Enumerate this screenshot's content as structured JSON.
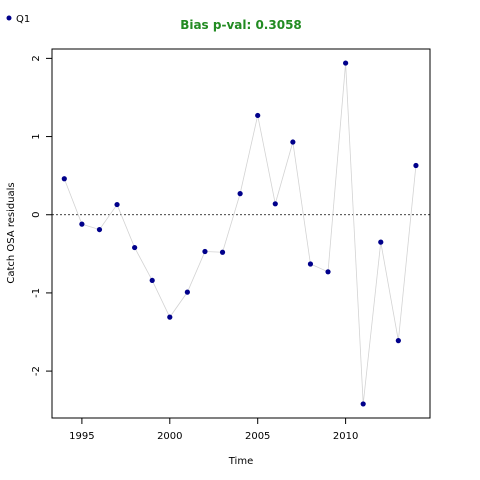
{
  "chart_data": {
    "type": "scatter",
    "title": "Bias p-val: 0.3058",
    "title_color": "#228b22",
    "xlabel": "Time",
    "ylabel": "Catch OSA residuals",
    "xlim": [
      1993.3,
      2014.8
    ],
    "ylim": [
      -2.6,
      2.12
    ],
    "xticks": [
      1995,
      2000,
      2005,
      2010
    ],
    "yticks": [
      -2,
      -1,
      0,
      1,
      2
    ],
    "reference_line": 0,
    "legend_placement": "top-left",
    "series": [
      {
        "name": "Q1",
        "color": "#00008b",
        "line_color": "#d3d3d3",
        "x": [
          1994,
          1995,
          1996,
          1997,
          1998,
          1999,
          2000,
          2001,
          2002,
          2003,
          2004,
          2005,
          2006,
          2007,
          2008,
          2009,
          2010,
          2011,
          2012,
          2013,
          2014
        ],
        "y": [
          0.46,
          -0.12,
          -0.19,
          0.13,
          -0.42,
          -0.84,
          -1.31,
          -0.99,
          -0.47,
          -0.48,
          0.27,
          1.27,
          0.14,
          0.93,
          -0.63,
          -0.73,
          1.94,
          -2.42,
          -0.35,
          -1.61,
          0.63
        ]
      }
    ]
  }
}
